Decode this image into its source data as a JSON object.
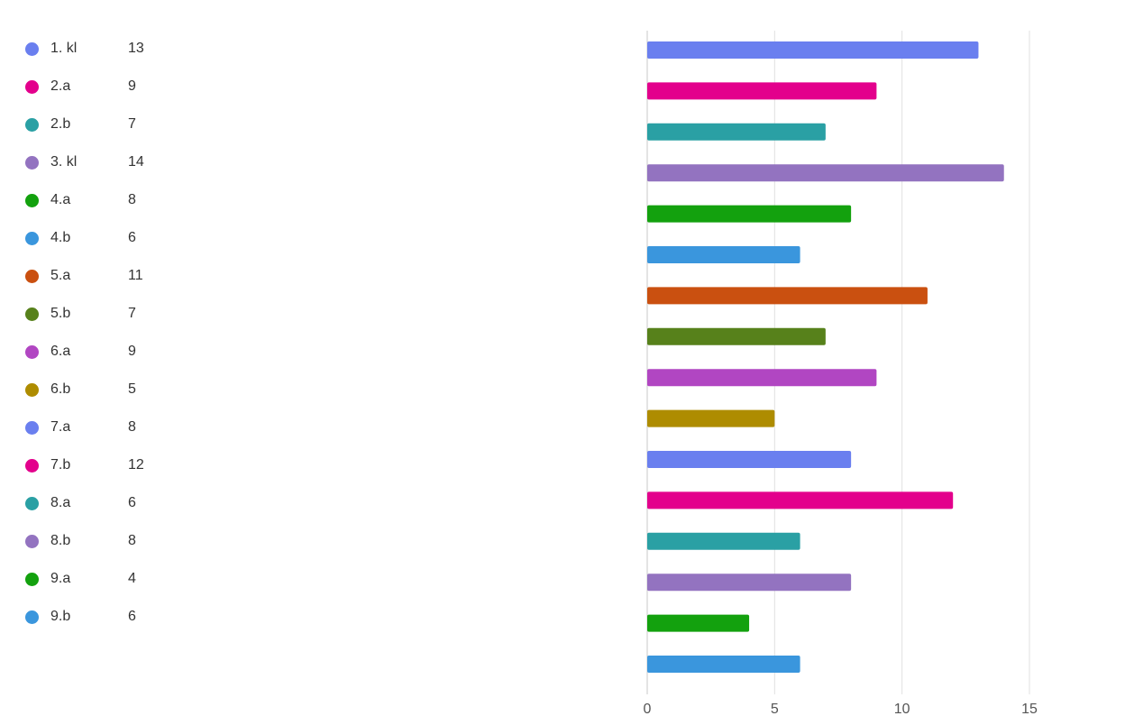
{
  "chart_data": {
    "type": "bar",
    "orientation": "horizontal",
    "categories": [
      "1. kl",
      "2.a",
      "2.b",
      "3. kl",
      "4.a",
      "4.b",
      "5.a",
      "5.b",
      "6.a",
      "6.b",
      "7.a",
      "7.b",
      "8.a",
      "8.b",
      "9.a",
      "9.b"
    ],
    "values": [
      13,
      9,
      7,
      14,
      8,
      6,
      11,
      7,
      9,
      5,
      8,
      12,
      6,
      8,
      4,
      6
    ],
    "colors": [
      "#6a7fef",
      "#e3008c",
      "#2aa0a4",
      "#9373c0",
      "#13a10e",
      "#3a96dd",
      "#ca5010",
      "#57811b",
      "#b146c2",
      "#ae8c00",
      "#6a7fef",
      "#e3008c",
      "#2aa0a4",
      "#9373c0",
      "#13a10e",
      "#3a96dd"
    ],
    "title": "",
    "xlabel": "",
    "ylabel": "",
    "xlim": [
      0,
      15
    ],
    "xticks": [
      0,
      5,
      10,
      15
    ],
    "grid": "vertical",
    "legend": "left"
  }
}
